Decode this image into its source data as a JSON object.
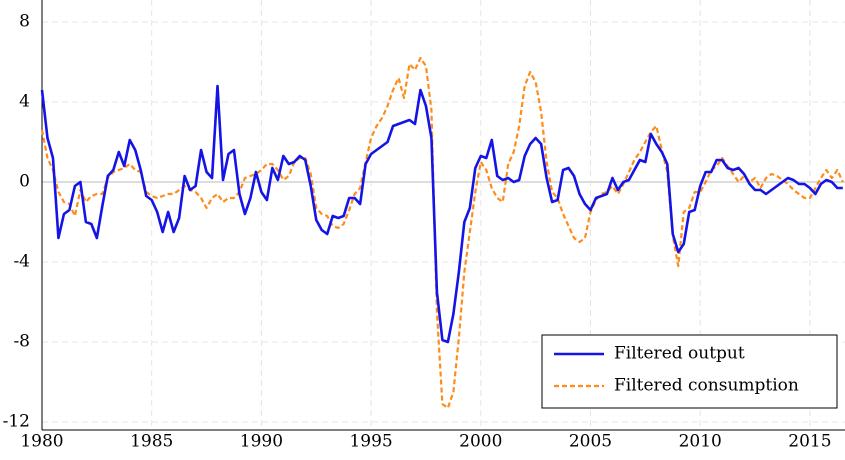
{
  "chart_data": {
    "type": "line",
    "x": [
      1980,
      1980.25,
      1980.5,
      1980.75,
      1981,
      1981.25,
      1981.5,
      1981.75,
      1982,
      1982.25,
      1982.5,
      1982.75,
      1983,
      1983.25,
      1983.5,
      1983.75,
      1984,
      1984.25,
      1984.5,
      1984.75,
      1985,
      1985.25,
      1985.5,
      1985.75,
      1986,
      1986.25,
      1986.5,
      1986.75,
      1987,
      1987.25,
      1987.5,
      1987.75,
      1988,
      1988.25,
      1988.5,
      1988.75,
      1989,
      1989.25,
      1989.5,
      1989.75,
      1990,
      1990.25,
      1990.5,
      1990.75,
      1991,
      1991.25,
      1991.5,
      1991.75,
      1992,
      1992.25,
      1992.5,
      1992.75,
      1993,
      1993.25,
      1993.5,
      1993.75,
      1994,
      1994.25,
      1994.5,
      1994.75,
      1995,
      1995.25,
      1995.5,
      1995.75,
      1996,
      1996.25,
      1996.5,
      1996.75,
      1997,
      1997.25,
      1997.5,
      1997.75,
      1998,
      1998.25,
      1998.5,
      1998.75,
      1999,
      1999.25,
      1999.5,
      1999.75,
      2000,
      2000.25,
      2000.5,
      2000.75,
      2001,
      2001.25,
      2001.5,
      2001.75,
      2002,
      2002.25,
      2002.5,
      2002.75,
      2003,
      2003.25,
      2003.5,
      2003.75,
      2004,
      2004.25,
      2004.5,
      2004.75,
      2005,
      2005.25,
      2005.5,
      2005.75,
      2006,
      2006.25,
      2006.5,
      2006.75,
      2007,
      2007.25,
      2007.5,
      2007.75,
      2008,
      2008.25,
      2008.5,
      2008.75,
      2009,
      2009.25,
      2009.5,
      2009.75,
      2010,
      2010.25,
      2010.5,
      2010.75,
      2011,
      2011.25,
      2011.5,
      2011.75,
      2012,
      2012.25,
      2012.5,
      2012.75,
      2013,
      2013.25,
      2013.5,
      2013.75,
      2014,
      2014.25,
      2014.5,
      2014.75,
      2015,
      2015.25,
      2015.5,
      2015.75,
      2016,
      2016.25,
      2016.5
    ],
    "series": [
      {
        "name": "Filtered output",
        "color": "#1414e6",
        "dash": false,
        "values": [
          4.6,
          2.2,
          1.2,
          -2.8,
          -1.6,
          -1.4,
          -0.2,
          0.0,
          -2.0,
          -2.1,
          -2.8,
          -1.2,
          0.3,
          0.6,
          1.5,
          0.8,
          2.1,
          1.6,
          0.6,
          -0.7,
          -0.9,
          -1.5,
          -2.5,
          -1.5,
          -2.5,
          -1.8,
          0.3,
          -0.4,
          -0.2,
          1.6,
          0.5,
          0.2,
          4.8,
          0.1,
          1.4,
          1.6,
          -0.6,
          -1.6,
          -0.8,
          0.5,
          -0.5,
          -0.9,
          0.7,
          0.1,
          1.3,
          0.9,
          1.0,
          1.3,
          1.1,
          -0.2,
          -1.9,
          -2.4,
          -2.6,
          -1.7,
          -1.8,
          -1.7,
          -0.8,
          -0.8,
          -1.1,
          0.9,
          1.4,
          1.6,
          1.8,
          2.0,
          2.8,
          2.9,
          3.0,
          3.1,
          2.9,
          4.6,
          3.8,
          2.2,
          -5.5,
          -7.9,
          -8.0,
          -6.6,
          -4.5,
          -2.0,
          -1.3,
          0.7,
          1.3,
          1.2,
          2.1,
          0.3,
          0.1,
          0.2,
          0.0,
          0.1,
          1.3,
          1.9,
          2.2,
          1.9,
          0.2,
          -1.0,
          -0.9,
          0.6,
          0.7,
          0.3,
          -0.6,
          -1.1,
          -1.4,
          -0.8,
          -0.7,
          -0.6,
          0.2,
          -0.4,
          0.0,
          0.1,
          0.6,
          1.1,
          1.0,
          2.4,
          1.9,
          1.5,
          0.9,
          -2.6,
          -3.5,
          -3.1,
          -1.5,
          -1.4,
          -0.2,
          0.5,
          0.5,
          1.1,
          1.1,
          0.7,
          0.6,
          0.7,
          0.4,
          -0.1,
          -0.4,
          -0.4,
          -0.6,
          -0.4,
          -0.2,
          0.0,
          0.2,
          0.1,
          -0.1,
          -0.1,
          -0.3,
          -0.6,
          -0.1,
          0.1,
          0.0,
          -0.3,
          -0.3
        ]
      },
      {
        "name": "Filtered consumption",
        "color": "#ff8c1a",
        "dash": true,
        "values": [
          2.6,
          1.2,
          0.6,
          -0.5,
          -1.0,
          -1.1,
          -1.7,
          -0.4,
          -1.0,
          -0.7,
          -0.6,
          -0.6,
          0.2,
          0.5,
          0.6,
          0.7,
          0.9,
          0.6,
          0.5,
          -0.5,
          -0.7,
          -0.8,
          -0.7,
          -0.6,
          -0.6,
          -0.4,
          -0.2,
          -0.4,
          -0.5,
          -0.8,
          -1.3,
          -0.8,
          -0.6,
          -1.0,
          -0.8,
          -0.8,
          -0.5,
          0.2,
          0.3,
          0.4,
          0.6,
          0.9,
          0.9,
          0.6,
          0.1,
          0.3,
          1.0,
          1.2,
          1.2,
          0.4,
          -1.3,
          -1.6,
          -1.7,
          -2.2,
          -2.3,
          -2.1,
          -1.4,
          -0.6,
          -0.3,
          1.0,
          2.2,
          2.8,
          3.2,
          3.8,
          4.6,
          5.2,
          4.2,
          5.9,
          5.6,
          6.2,
          5.8,
          3.6,
          -6.5,
          -11.1,
          -11.3,
          -10.5,
          -7.8,
          -4.5,
          -2.5,
          -0.5,
          1.0,
          0.6,
          -0.3,
          -0.8,
          -1.0,
          0.9,
          1.5,
          2.8,
          4.8,
          5.5,
          5.0,
          3.5,
          1.0,
          -0.5,
          -0.8,
          -1.6,
          -2.2,
          -2.8,
          -3.0,
          -2.8,
          -1.5,
          -0.9,
          -0.6,
          -0.5,
          -0.2,
          -0.6,
          -0.1,
          0.5,
          1.1,
          1.5,
          2.0,
          2.5,
          2.8,
          1.6,
          0.5,
          -2.7,
          -4.2,
          -1.5,
          -1.3,
          -0.5,
          -0.5,
          0.0,
          0.6,
          0.8,
          1.2,
          0.8,
          0.4,
          0.0,
          0.3,
          0.0,
          0.2,
          -0.3,
          0.2,
          0.4,
          0.3,
          0.1,
          -0.1,
          -0.4,
          -0.6,
          -0.8,
          -0.8,
          -0.3,
          0.2,
          0.6,
          0.2,
          0.6,
          0.0
        ]
      }
    ],
    "xlim": [
      1980,
      2016.6
    ],
    "ylim": [
      -12.4,
      9.1
    ],
    "xticks": [
      1980,
      1985,
      1990,
      1995,
      2000,
      2005,
      2010,
      2015
    ],
    "yticks": [
      -12,
      -8,
      -4,
      0,
      4,
      8
    ],
    "grid": true,
    "legend": "lower right"
  }
}
